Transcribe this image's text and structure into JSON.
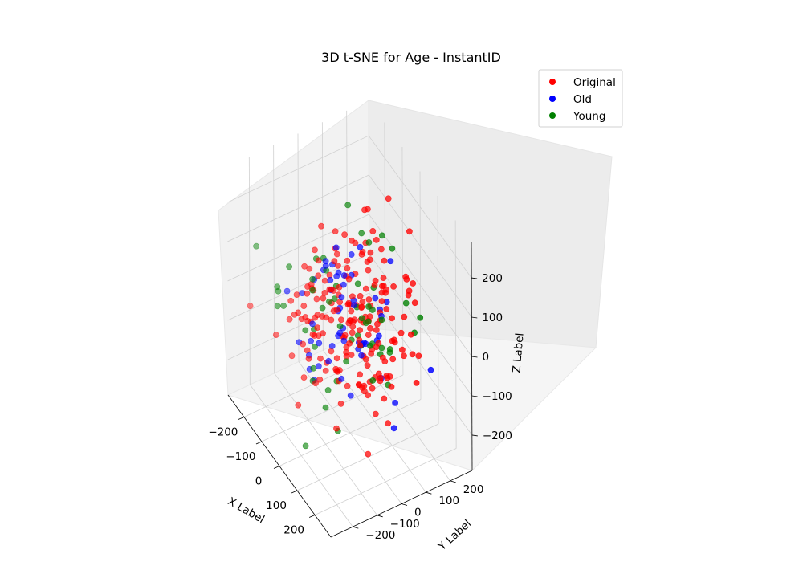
{
  "chart_data": {
    "type": "scatter",
    "projection": "3d",
    "title": "3D t-SNE for Age - InstantID",
    "xlabel": "X Label",
    "ylabel": "Y Label",
    "zlabel": "Z Label",
    "xlim": [
      -290,
      290
    ],
    "ylim": [
      -290,
      290
    ],
    "zlim": [
      -290,
      290
    ],
    "xticks": [
      -200,
      -100,
      0,
      100,
      200
    ],
    "yticks": [
      -200,
      -100,
      0,
      100,
      200
    ],
    "zticks": [
      -200,
      -100,
      0,
      100,
      200
    ],
    "xtick_labels": [
      "−200",
      "−100",
      "0",
      "100",
      "200"
    ],
    "ytick_labels": [
      "−200",
      "−100",
      "0",
      "100",
      "200"
    ],
    "ztick_labels": [
      "−200",
      "−100",
      "0",
      "100",
      "200"
    ],
    "grid": true,
    "legend_position": "top-right",
    "series": [
      {
        "name": "Original",
        "color": "#ff0000",
        "count": 200
      },
      {
        "name": "Old",
        "color": "#0000ff",
        "count": 55
      },
      {
        "name": "Young",
        "color": "#008000",
        "count": 55
      }
    ]
  }
}
